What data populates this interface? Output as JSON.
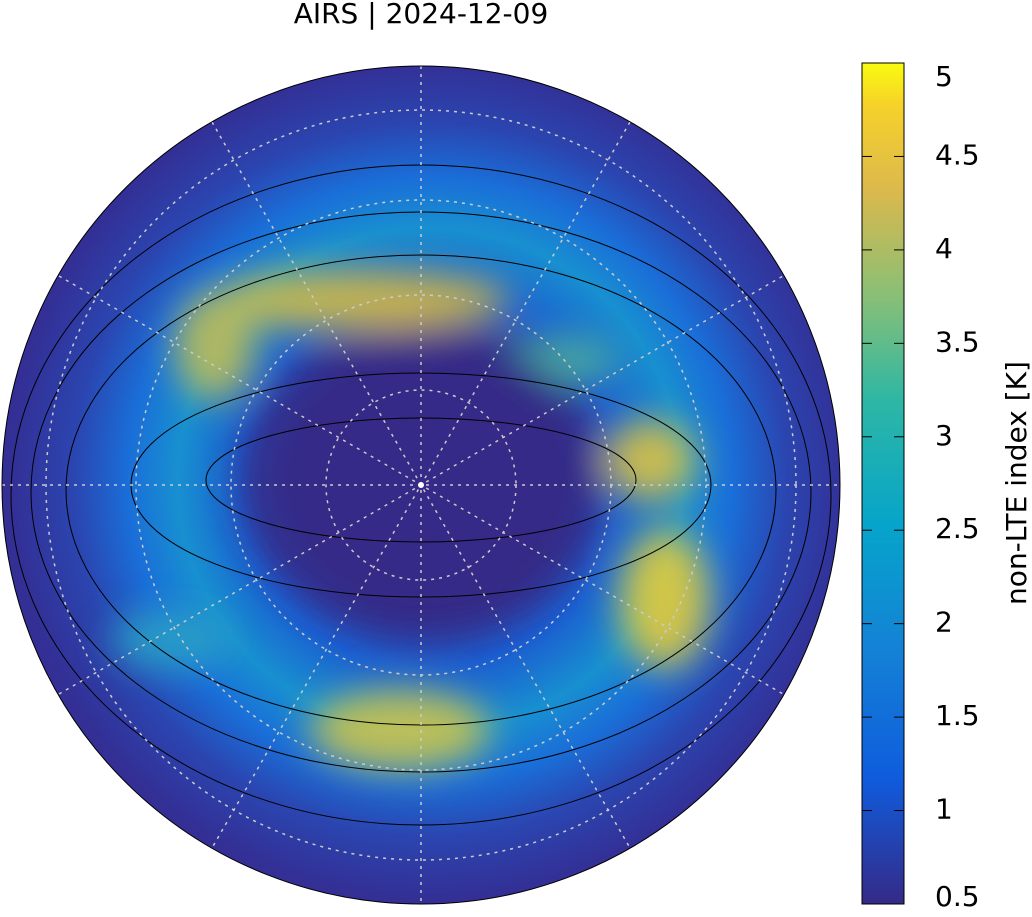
{
  "title": "AIRS | 2024-12-09",
  "colorbar": {
    "label": "non-LTE index [K]",
    "lim": [
      0.5,
      5
    ],
    "ticks": [
      0.5,
      1,
      1.5,
      2,
      2.5,
      3,
      3.5,
      4,
      4.5,
      5
    ]
  }
}
